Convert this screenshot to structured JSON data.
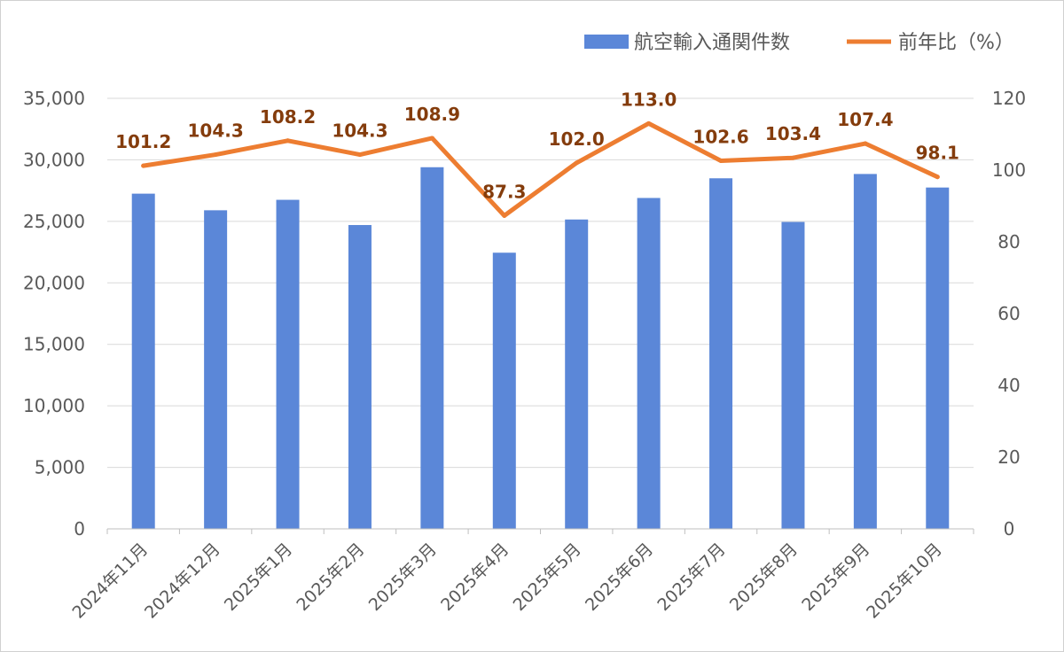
{
  "chart_data": {
    "type": "bar",
    "categories": [
      "2024年11月",
      "2024年12月",
      "2025年1月",
      "2025年2月",
      "2025年3月",
      "2025年4月",
      "2025年5月",
      "2025年6月",
      "2025年7月",
      "2025年8月",
      "2025年9月",
      "2025年10月"
    ],
    "series": [
      {
        "name": "航空輸入通関件数",
        "type": "bar",
        "axis": "left",
        "color": "#5b87d8",
        "values": [
          27250,
          25900,
          26750,
          24700,
          29400,
          22450,
          25150,
          26900,
          28500,
          24950,
          28850,
          27750
        ]
      },
      {
        "name": "前年比（%）",
        "type": "line",
        "axis": "right",
        "color": "#ed7d31",
        "values": [
          101.2,
          104.3,
          108.2,
          104.3,
          108.9,
          87.3,
          102.0,
          113.0,
          102.6,
          103.4,
          107.4,
          98.1
        ],
        "labels": [
          "101.2",
          "104.3",
          "108.2",
          "104.3",
          "108.9",
          "87.3",
          "102.0",
          "113.0",
          "102.6",
          "103.4",
          "107.4",
          "98.1"
        ]
      }
    ],
    "y_left": {
      "min": 0,
      "max": 35000,
      "ticks": [
        0,
        5000,
        10000,
        15000,
        20000,
        25000,
        30000,
        35000
      ],
      "tick_labels": [
        "0",
        "5,000",
        "10,000",
        "15,000",
        "20,000",
        "25,000",
        "30,000",
        "35,000"
      ]
    },
    "y_right": {
      "min": 0,
      "max": 120,
      "ticks": [
        0,
        20,
        40,
        60,
        80,
        100,
        120
      ],
      "tick_labels": [
        "0",
        "20",
        "40",
        "60",
        "80",
        "100",
        "120"
      ]
    },
    "grid": true,
    "legend_position": "top-right",
    "title": "",
    "xlabel": "",
    "ylabel": ""
  }
}
